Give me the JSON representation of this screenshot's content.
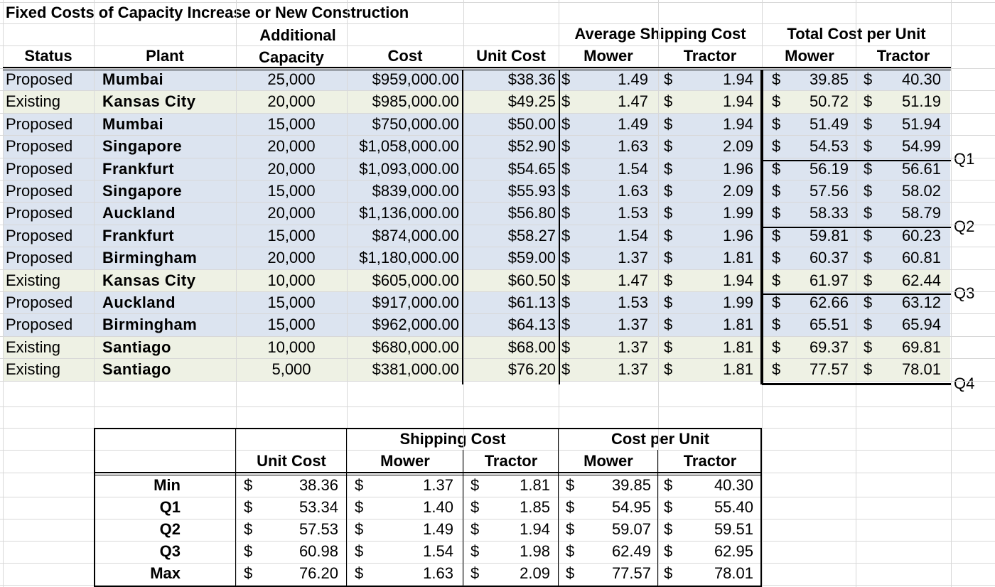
{
  "title": "Fixed Costs of Capacity Increase or New Construction",
  "colors": {
    "proposed_fill": "#dce4f0",
    "existing_fill": "#eef1e4",
    "gridline": "#d8d8d8",
    "border": "#000000"
  },
  "headers": {
    "status": "Status",
    "plant": "Plant",
    "additional": "Additional",
    "capacity": "Capacity",
    "cost": "Cost",
    "unit_cost": "Unit Cost",
    "avg_shipping": "Average Shipping Cost",
    "total_cost": "Total Cost per Unit",
    "mower": "Mower",
    "tractor": "Tractor"
  },
  "currency_symbol": "$",
  "rows": [
    {
      "status": "Proposed",
      "plant": "Mumbai",
      "capacity": "25,000",
      "cost": "$959,000.00",
      "unit_cost": "$38.36",
      "ship_mower": "1.49",
      "ship_tractor": "1.94",
      "total_mower": "39.85",
      "total_tractor": "40.30"
    },
    {
      "status": "Existing",
      "plant": "Kansas City",
      "capacity": "20,000",
      "cost": "$985,000.00",
      "unit_cost": "$49.25",
      "ship_mower": "1.47",
      "ship_tractor": "1.94",
      "total_mower": "50.72",
      "total_tractor": "51.19"
    },
    {
      "status": "Proposed",
      "plant": "Mumbai",
      "capacity": "15,000",
      "cost": "$750,000.00",
      "unit_cost": "$50.00",
      "ship_mower": "1.49",
      "ship_tractor": "1.94",
      "total_mower": "51.49",
      "total_tractor": "51.94"
    },
    {
      "status": "Proposed",
      "plant": "Singapore",
      "capacity": "20,000",
      "cost": "$1,058,000.00",
      "unit_cost": "$52.90",
      "ship_mower": "1.63",
      "ship_tractor": "2.09",
      "total_mower": "54.53",
      "total_tractor": "54.99"
    },
    {
      "status": "Proposed",
      "plant": "Frankfurt",
      "capacity": "20,000",
      "cost": "$1,093,000.00",
      "unit_cost": "$54.65",
      "ship_mower": "1.54",
      "ship_tractor": "1.96",
      "total_mower": "56.19",
      "total_tractor": "56.61"
    },
    {
      "status": "Proposed",
      "plant": "Singapore",
      "capacity": "15,000",
      "cost": "$839,000.00",
      "unit_cost": "$55.93",
      "ship_mower": "1.63",
      "ship_tractor": "2.09",
      "total_mower": "57.56",
      "total_tractor": "58.02"
    },
    {
      "status": "Proposed",
      "plant": "Auckland",
      "capacity": "20,000",
      "cost": "$1,136,000.00",
      "unit_cost": "$56.80",
      "ship_mower": "1.53",
      "ship_tractor": "1.99",
      "total_mower": "58.33",
      "total_tractor": "58.79"
    },
    {
      "status": "Proposed",
      "plant": "Frankfurt",
      "capacity": "15,000",
      "cost": "$874,000.00",
      "unit_cost": "$58.27",
      "ship_mower": "1.54",
      "ship_tractor": "1.96",
      "total_mower": "59.81",
      "total_tractor": "60.23"
    },
    {
      "status": "Proposed",
      "plant": "Birmingham",
      "capacity": "20,000",
      "cost": "$1,180,000.00",
      "unit_cost": "$59.00",
      "ship_mower": "1.37",
      "ship_tractor": "1.81",
      "total_mower": "60.37",
      "total_tractor": "60.81"
    },
    {
      "status": "Existing",
      "plant": "Kansas City",
      "capacity": "10,000",
      "cost": "$605,000.00",
      "unit_cost": "$60.50",
      "ship_mower": "1.47",
      "ship_tractor": "1.94",
      "total_mower": "61.97",
      "total_tractor": "62.44"
    },
    {
      "status": "Proposed",
      "plant": "Auckland",
      "capacity": "15,000",
      "cost": "$917,000.00",
      "unit_cost": "$61.13",
      "ship_mower": "1.53",
      "ship_tractor": "1.99",
      "total_mower": "62.66",
      "total_tractor": "63.12"
    },
    {
      "status": "Proposed",
      "plant": "Birmingham",
      "capacity": "15,000",
      "cost": "$962,000.00",
      "unit_cost": "$64.13",
      "ship_mower": "1.37",
      "ship_tractor": "1.81",
      "total_mower": "65.51",
      "total_tractor": "65.94"
    },
    {
      "status": "Existing",
      "plant": "Santiago",
      "capacity": "10,000",
      "cost": "$680,000.00",
      "unit_cost": "$68.00",
      "ship_mower": "1.37",
      "ship_tractor": "1.81",
      "total_mower": "69.37",
      "total_tractor": "69.81"
    },
    {
      "status": "Existing",
      "plant": "Santiago",
      "capacity": "5,000",
      "cost": "$381,000.00",
      "unit_cost": "$76.20",
      "ship_mower": "1.37",
      "ship_tractor": "1.81",
      "total_mower": "77.57",
      "total_tractor": "78.01"
    }
  ],
  "quartile_markers": [
    "Q1",
    "Q2",
    "Q3",
    "Q4"
  ],
  "summary": {
    "headers": {
      "unit_cost": "Unit Cost",
      "shipping_cost": "Shipping Cost",
      "cost_per_unit": "Cost per Unit",
      "mower": "Mower",
      "tractor": "Tractor"
    },
    "rows": [
      {
        "label": "Min",
        "unit_cost": "38.36",
        "ship_mower": "1.37",
        "ship_tractor": "1.81",
        "cpu_mower": "39.85",
        "cpu_tractor": "40.30"
      },
      {
        "label": "Q1",
        "unit_cost": "53.34",
        "ship_mower": "1.40",
        "ship_tractor": "1.85",
        "cpu_mower": "54.95",
        "cpu_tractor": "55.40"
      },
      {
        "label": "Q2",
        "unit_cost": "57.53",
        "ship_mower": "1.49",
        "ship_tractor": "1.94",
        "cpu_mower": "59.07",
        "cpu_tractor": "59.51"
      },
      {
        "label": "Q3",
        "unit_cost": "60.98",
        "ship_mower": "1.54",
        "ship_tractor": "1.98",
        "cpu_mower": "62.49",
        "cpu_tractor": "62.95"
      },
      {
        "label": "Max",
        "unit_cost": "76.20",
        "ship_mower": "1.63",
        "ship_tractor": "2.09",
        "cpu_mower": "77.57",
        "cpu_tractor": "78.01"
      }
    ]
  }
}
